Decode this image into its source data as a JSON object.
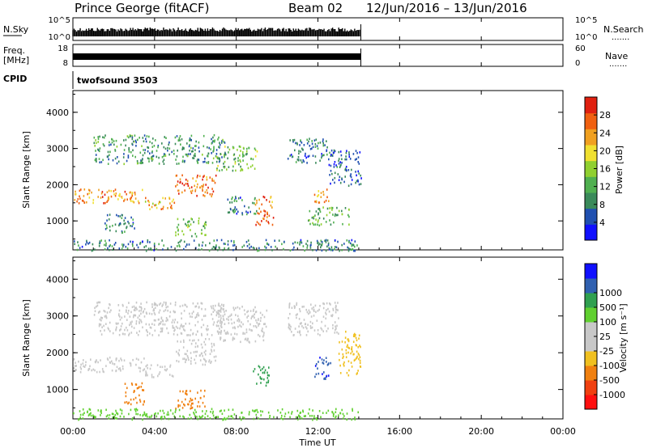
{
  "header": {
    "station": "Prince George (fitACF)",
    "beam": "Beam 02",
    "date_range": "12/Jun/2016 – 13/Jun/2016"
  },
  "side_labels": {
    "nsky": "N.Sky",
    "freq": "Freq.",
    "mhz": "[MHz]",
    "cpid": "CPID",
    "nsearch": "N.Search",
    "nave": "Nave",
    "dots": "......."
  },
  "nsky_axis": {
    "top": "10^5",
    "bottom": "10^0"
  },
  "freq_axis": {
    "left_top": "18",
    "left_bottom": "8",
    "right_top": "60",
    "right_bottom": "0"
  },
  "cpid_text": "twofsound 3503",
  "colors": {
    "power_scale": [
      "#1010ff",
      "#2050b0",
      "#3a8a5a",
      "#50b050",
      "#90d030",
      "#f0e030",
      "#f0a020",
      "#f06010",
      "#e02010"
    ],
    "velocity_scale": [
      "#ff1010",
      "#f04010",
      "#f08010",
      "#f0c020",
      "#c8c8c8",
      "#c8c8c8",
      "#60d030",
      "#30a050",
      "#3060b0",
      "#1010ff"
    ]
  },
  "chart_data": [
    {
      "type": "heatmap",
      "name": "power",
      "ylabel": "Slant Range [km]",
      "yticks": [
        "1000",
        "2000",
        "3000",
        "4000"
      ],
      "ylim": [
        200,
        4600
      ],
      "colorbar_label": "Power [dB]",
      "colorbar_ticks": [
        "4",
        "8",
        "12",
        "16",
        "20",
        "24",
        "28"
      ],
      "colorbar_range": [
        0,
        32
      ],
      "data_end_hour": 14.1,
      "regions": [
        {
          "t0": 0.0,
          "t1": 3.5,
          "r0": 1500,
          "r1": 1900,
          "level": 24
        },
        {
          "t0": 3.5,
          "t1": 5.0,
          "r0": 1350,
          "r1": 1700,
          "level": 22
        },
        {
          "t0": 5.0,
          "t1": 7.0,
          "r0": 1700,
          "r1": 2300,
          "level": 26
        },
        {
          "t0": 7.0,
          "t1": 9.0,
          "r0": 2400,
          "r1": 3100,
          "level": 14
        },
        {
          "t0": 1.0,
          "t1": 7.5,
          "r0": 2600,
          "r1": 3400,
          "level": 10
        },
        {
          "t0": 8.9,
          "t1": 9.8,
          "r0": 900,
          "r1": 1700,
          "level": 26
        },
        {
          "t0": 11.8,
          "t1": 12.6,
          "r0": 1500,
          "r1": 1900,
          "level": 24
        },
        {
          "t0": 5.0,
          "t1": 6.5,
          "r0": 600,
          "r1": 1100,
          "level": 14
        },
        {
          "t0": 0.0,
          "t1": 14.1,
          "r0": 200,
          "r1": 500,
          "level": 8
        },
        {
          "t0": 1.5,
          "t1": 3.0,
          "r0": 700,
          "r1": 1200,
          "level": 8
        },
        {
          "t0": 7.5,
          "t1": 9.0,
          "r0": 1200,
          "r1": 1700,
          "level": 8
        },
        {
          "t0": 10.5,
          "t1": 12.5,
          "r0": 2600,
          "r1": 3300,
          "level": 8
        },
        {
          "t0": 11.5,
          "t1": 13.5,
          "r0": 900,
          "r1": 1400,
          "level": 12
        },
        {
          "t0": 12.5,
          "t1": 14.1,
          "r0": 2000,
          "r1": 3000,
          "level": 6
        }
      ]
    },
    {
      "type": "heatmap",
      "name": "velocity",
      "ylabel": "Slant Range [km]",
      "yticks": [
        "1000",
        "2000",
        "3000",
        "4000"
      ],
      "ylim": [
        200,
        4600
      ],
      "colorbar_label": "Velocity [m s⁻¹]",
      "colorbar_ticks": [
        "-1000",
        "-500",
        "-100",
        "-25",
        "25",
        "100",
        "500",
        "1000"
      ],
      "data_end_hour": 14.1,
      "regions": [
        {
          "t0": 0.0,
          "t1": 3.5,
          "r0": 1500,
          "r1": 1900,
          "level": 0
        },
        {
          "t0": 3.5,
          "t1": 5.0,
          "r0": 1350,
          "r1": 1700,
          "level": 0
        },
        {
          "t0": 5.0,
          "t1": 7.0,
          "r0": 1700,
          "r1": 2400,
          "level": 0
        },
        {
          "t0": 7.0,
          "t1": 9.5,
          "r0": 2300,
          "r1": 3300,
          "level": 0
        },
        {
          "t0": 1.0,
          "t1": 7.5,
          "r0": 2500,
          "r1": 3400,
          "level": 0
        },
        {
          "t0": 10.5,
          "t1": 13.0,
          "r0": 2500,
          "r1": 3400,
          "level": 0
        },
        {
          "t0": 2.5,
          "t1": 3.5,
          "r0": 600,
          "r1": 1200,
          "level": -200
        },
        {
          "t0": 5.0,
          "t1": 6.5,
          "r0": 500,
          "r1": 1000,
          "level": -200
        },
        {
          "t0": 8.8,
          "t1": 9.6,
          "r0": 1100,
          "r1": 1700,
          "level": 300
        },
        {
          "t0": 11.8,
          "t1": 12.6,
          "r0": 1300,
          "r1": 1900,
          "level": 800
        },
        {
          "t0": 0.0,
          "t1": 14.1,
          "r0": 200,
          "r1": 500,
          "level": 50
        },
        {
          "t0": 13.0,
          "t1": 14.1,
          "r0": 1400,
          "r1": 2600,
          "level": -60
        }
      ]
    }
  ],
  "time_axis": {
    "xlabel": "Time UT",
    "ticks": [
      "00:00",
      "04:00",
      "08:00",
      "12:00",
      "16:00",
      "20:00",
      "00:00"
    ],
    "xlim": [
      0,
      24
    ]
  }
}
